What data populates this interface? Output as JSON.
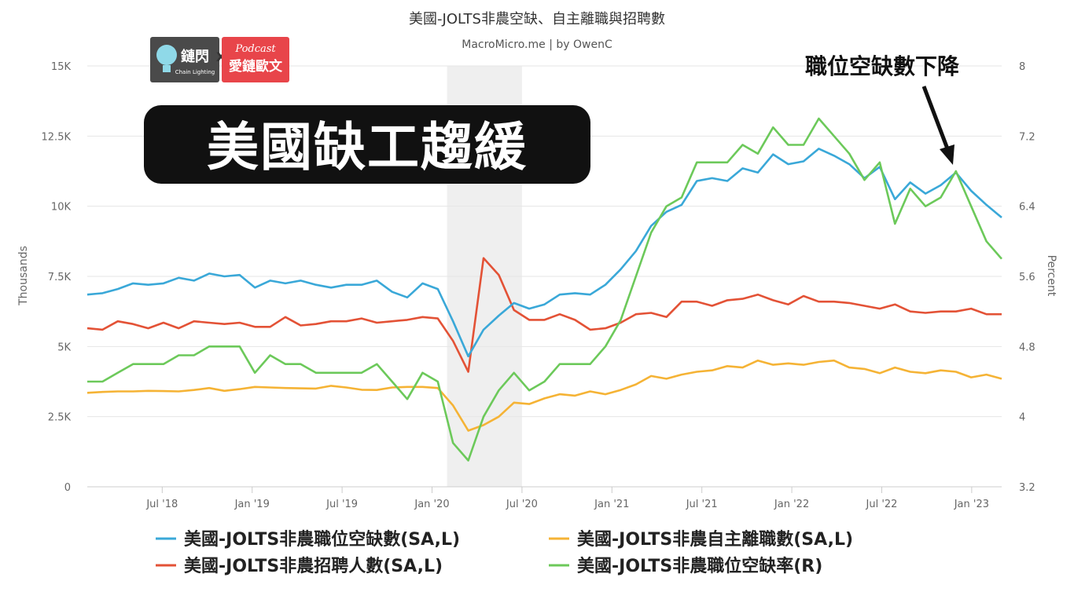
{
  "chart_data": {
    "type": "line",
    "title": "美國-JOLTS非農空缺、自主離職與招聘數",
    "subtitle": "MacroMicro.me | by OwenC",
    "ylabel_left": "Thousands",
    "ylabel_right": "Percent",
    "y_left_range": [
      0,
      15000
    ],
    "y_right_range": [
      3.2,
      8
    ],
    "y_left_ticks": [
      "0",
      "2.5K",
      "5K",
      "7.5K",
      "10K",
      "12.5K",
      "15K"
    ],
    "y_right_ticks": [
      "3.2",
      "4",
      "4.8",
      "5.6",
      "6.4",
      "7.2",
      "8"
    ],
    "x_ticks": [
      "Jul '18",
      "Jan '19",
      "Jul '19",
      "Jan '20",
      "Jul '20",
      "Jan '21",
      "Jul '21",
      "Jan '22",
      "Jul '22",
      "Jan '23"
    ],
    "x_start": "2018-02",
    "x_end": "2023-03",
    "recession_band": [
      "2020-02",
      "2020-07"
    ],
    "grid": "horizontal",
    "legend_position": "bottom",
    "series": [
      {
        "name": "美國-JOLTS非農職位空缺數(SA,L)",
        "axis": "left",
        "color": "#3aa8d8",
        "values": [
          6850,
          6900,
          7050,
          7250,
          7200,
          7250,
          7450,
          7350,
          7600,
          7500,
          7550,
          7100,
          7350,
          7250,
          7350,
          7200,
          7100,
          7200,
          7200,
          7350,
          6950,
          6750,
          7250,
          7050,
          5900,
          4650,
          5600,
          6100,
          6550,
          6350,
          6500,
          6850,
          6900,
          6850,
          7200,
          7750,
          8400,
          9300,
          9800,
          10050,
          10900,
          11000,
          10900,
          11350,
          11200,
          11850,
          11500,
          11600,
          12050,
          11800,
          11500,
          11000,
          11400,
          10250,
          10850,
          10450,
          10750,
          11200,
          10550,
          10050,
          9600
        ]
      },
      {
        "name": "美國-JOLTS非農招聘人數(SA,L)",
        "axis": "left",
        "color": "#e35236",
        "values": [
          5650,
          5600,
          5900,
          5800,
          5650,
          5850,
          5650,
          5900,
          5850,
          5800,
          5850,
          5700,
          5700,
          6050,
          5750,
          5800,
          5900,
          5900,
          6000,
          5850,
          5900,
          5950,
          6050,
          6000,
          5200,
          4100,
          8150,
          7550,
          6300,
          5950,
          5950,
          6150,
          5950,
          5600,
          5650,
          5850,
          6150,
          6200,
          6050,
          6600,
          6600,
          6450,
          6650,
          6700,
          6850,
          6650,
          6500,
          6800,
          6600,
          6600,
          6550,
          6450,
          6350,
          6500,
          6250,
          6200,
          6250,
          6250,
          6350,
          6150,
          6150
        ]
      },
      {
        "name": "美國-JOLTS非農自主離職數(SA,L)",
        "axis": "left",
        "color": "#f5b335",
        "values": [
          3350,
          3380,
          3400,
          3400,
          3420,
          3410,
          3400,
          3450,
          3520,
          3420,
          3480,
          3560,
          3540,
          3520,
          3510,
          3500,
          3600,
          3540,
          3460,
          3450,
          3540,
          3560,
          3560,
          3520,
          2900,
          2000,
          2200,
          2500,
          3000,
          2950,
          3150,
          3300,
          3250,
          3400,
          3300,
          3450,
          3650,
          3950,
          3850,
          4000,
          4100,
          4150,
          4300,
          4250,
          4500,
          4350,
          4400,
          4350,
          4450,
          4500,
          4250,
          4200,
          4050,
          4250,
          4100,
          4050,
          4150,
          4100,
          3900,
          4000,
          3850
        ]
      },
      {
        "name": "美國-JOLTS非農職位空缺率(R)",
        "axis": "right",
        "color": "#6cc95a",
        "values": [
          4.4,
          4.4,
          4.5,
          4.6,
          4.6,
          4.6,
          4.7,
          4.7,
          4.8,
          4.8,
          4.8,
          4.5,
          4.7,
          4.6,
          4.6,
          4.5,
          4.5,
          4.5,
          4.5,
          4.6,
          4.4,
          4.2,
          4.5,
          4.4,
          3.7,
          3.5,
          4.0,
          4.3,
          4.5,
          4.3,
          4.4,
          4.6,
          4.6,
          4.6,
          4.8,
          5.1,
          5.6,
          6.1,
          6.4,
          6.5,
          6.9,
          6.9,
          6.9,
          7.1,
          7.0,
          7.3,
          7.1,
          7.1,
          7.4,
          7.2,
          7.0,
          6.7,
          6.9,
          6.2,
          6.6,
          6.4,
          6.5,
          6.8,
          6.4,
          6.0,
          5.8
        ]
      }
    ]
  },
  "overlay": {
    "banner": "美國缺工趨緩",
    "annotation": "職位空缺數下降",
    "logo_left": "鏈閃",
    "logo_left_sub": "Chain Lighting",
    "logo_x": "X",
    "logo_right_top": "Podcast",
    "logo_right_main": "愛鏈歐文",
    "logo_right_mark": "鏈",
    "colors": {
      "banner_bg": "#111111",
      "logo_left_bg": "#4a4a4a",
      "logo_right_bg": "#e8454a",
      "recession_band": "#efefef"
    }
  }
}
